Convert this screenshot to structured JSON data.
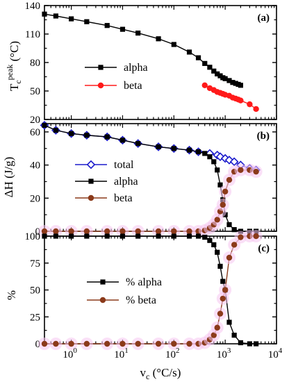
{
  "colors": {
    "black": "#000000",
    "red": "#ff1a1a",
    "blue": "#1a1acc",
    "brown": "#8b3a1a",
    "pink_glow": "#f5c6f0"
  },
  "x_axis": {
    "label_base": "v",
    "label_sub": "c",
    "label_unit": " (°C/s)",
    "ticks": [
      {
        "value": 1,
        "base": "10",
        "exp": "0"
      },
      {
        "value": 10,
        "base": "10",
        "exp": "1"
      },
      {
        "value": 100,
        "base": "10",
        "exp": "2"
      },
      {
        "value": 1000,
        "base": "10",
        "exp": "3"
      },
      {
        "value": 10000,
        "base": "10",
        "exp": "4"
      }
    ]
  },
  "chart_data": [
    {
      "type": "line",
      "panel": "a",
      "tag": "(a)",
      "ylabel_base": "T",
      "ylabel_sub": "c",
      "ylabel_sup": "peak",
      "ylabel_unit": " (°C)",
      "ylim": [
        20,
        140
      ],
      "yticks": [
        20,
        50,
        80,
        110,
        140
      ],
      "xlim": [
        0.3,
        10000
      ],
      "xscale": "log",
      "grid": false,
      "legend_placement": "center-left",
      "series": [
        {
          "name": "alpha",
          "color": "#000000",
          "marker": "square",
          "x": [
            0.3,
            0.5,
            1,
            2,
            5,
            10,
            20,
            50,
            100,
            200,
            300,
            400,
            500,
            600,
            700,
            800,
            900,
            1000,
            1200,
            1400,
            1600,
            1800,
            2000
          ],
          "y": [
            131,
            129,
            126,
            123,
            119,
            115,
            111,
            105,
            99,
            91,
            85,
            79,
            75,
            71,
            68,
            66,
            64,
            63,
            61,
            59,
            58,
            57,
            56
          ]
        },
        {
          "name": "beta",
          "color": "#ff1a1a",
          "marker": "circle",
          "x": [
            400,
            500,
            600,
            700,
            800,
            900,
            1000,
            1200,
            1400,
            1600,
            1800,
            2000,
            3000,
            4000
          ],
          "y": [
            56,
            53,
            51,
            49,
            48,
            47,
            46,
            45,
            43,
            42,
            41,
            40,
            36,
            31
          ]
        }
      ]
    },
    {
      "type": "line",
      "panel": "b",
      "tag": "(b)",
      "ylabel": "ΔH  (J/g)",
      "ylim": [
        0,
        65
      ],
      "yticks": [
        0,
        20,
        40,
        60
      ],
      "xlim": [
        0.3,
        10000
      ],
      "xscale": "log",
      "grid": false,
      "legend_placement": "center-left",
      "series": [
        {
          "name": "total",
          "color": "#1a1acc",
          "marker": "diamond-open",
          "x": [
            0.3,
            0.5,
            1,
            2,
            5,
            10,
            20,
            50,
            100,
            200,
            300,
            500,
            700,
            800,
            1000,
            1200,
            1500,
            2000,
            3000,
            4000
          ],
          "y": [
            64,
            61,
            59,
            58,
            57,
            55,
            53,
            51,
            50,
            49,
            48,
            47,
            46,
            45,
            44,
            43,
            42,
            40,
            38,
            37
          ]
        },
        {
          "name": "alpha",
          "color": "#000000",
          "marker": "square",
          "x": [
            0.3,
            0.5,
            1,
            2,
            5,
            10,
            20,
            50,
            100,
            200,
            300,
            400,
            500,
            600,
            700,
            800,
            900,
            1000,
            1200,
            1500,
            2000,
            3000,
            4000
          ],
          "y": [
            64,
            61,
            59,
            58,
            57,
            55,
            53,
            51,
            50,
            49,
            48,
            47,
            45,
            42,
            37,
            28,
            19,
            10,
            4,
            1,
            0,
            0,
            0
          ]
        },
        {
          "name": "beta",
          "color": "#8b3a1a",
          "marker": "circle",
          "x": [
            0.3,
            0.5,
            1,
            2,
            5,
            10,
            20,
            50,
            100,
            200,
            300,
            400,
            500,
            600,
            700,
            800,
            900,
            1000,
            1200,
            1500,
            2000,
            3000,
            4000
          ],
          "y": [
            0,
            0,
            0,
            0,
            0,
            0,
            0,
            0,
            0,
            0,
            0,
            0.5,
            2,
            4,
            7,
            12,
            16,
            24,
            31,
            36,
            37,
            37,
            36
          ]
        }
      ]
    },
    {
      "type": "line",
      "panel": "c",
      "tag": "(c)",
      "ylabel": "%",
      "ylim": [
        0,
        100
      ],
      "yticks": [
        0,
        25,
        50,
        75,
        100
      ],
      "xlim": [
        0.3,
        10000
      ],
      "xscale": "log",
      "grid": false,
      "legend_placement": "center",
      "series": [
        {
          "name": "% alpha",
          "color": "#000000",
          "marker": "square",
          "x": [
            0.3,
            0.5,
            1,
            2,
            5,
            10,
            20,
            50,
            100,
            200,
            300,
            400,
            500,
            600,
            700,
            800,
            900,
            1000,
            1200,
            1500,
            2000,
            3000,
            4000
          ],
          "y": [
            100,
            100,
            100,
            100,
            100,
            100,
            100,
            100,
            100,
            100,
            100,
            99,
            96,
            92,
            85,
            72,
            58,
            50,
            20,
            8,
            1,
            0,
            0
          ]
        },
        {
          "name": "% beta",
          "color": "#8b3a1a",
          "marker": "circle",
          "x": [
            0.3,
            0.5,
            1,
            2,
            5,
            10,
            20,
            50,
            100,
            200,
            300,
            400,
            500,
            600,
            700,
            800,
            900,
            1000,
            1200,
            1500,
            2000,
            3000,
            4000
          ],
          "y": [
            0,
            0,
            0,
            0,
            0,
            0,
            0,
            0,
            0,
            0,
            0,
            1,
            4,
            8,
            15,
            28,
            42,
            50,
            80,
            92,
            99,
            100,
            100
          ]
        }
      ]
    }
  ]
}
